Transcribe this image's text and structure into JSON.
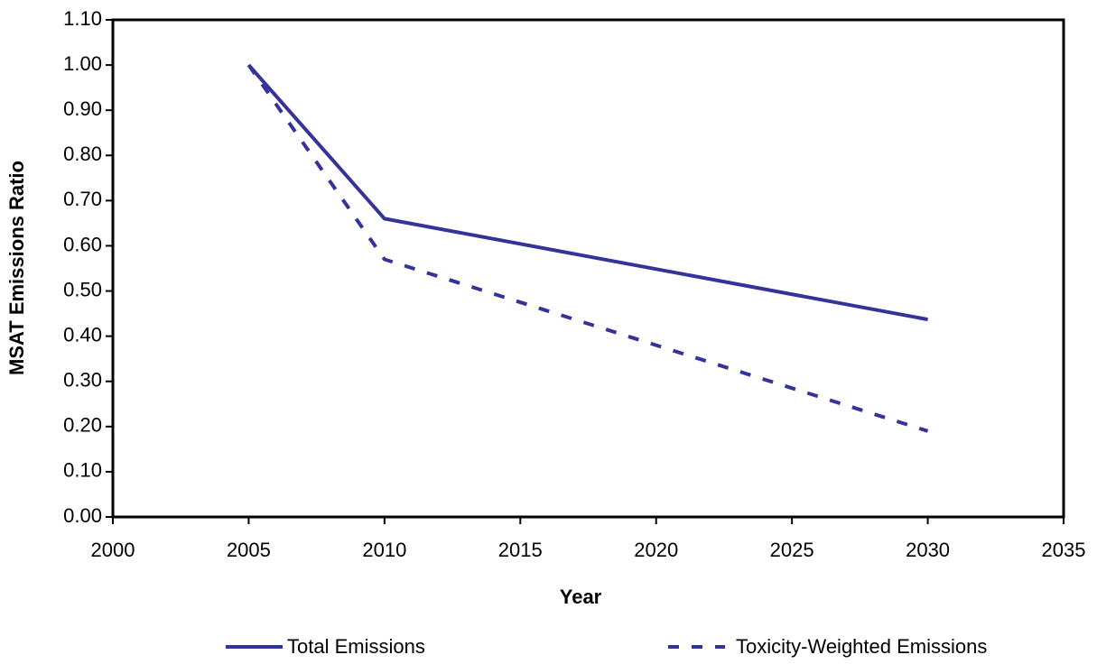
{
  "chart_data": {
    "type": "line",
    "x_label": "Year",
    "y_label": "MSAT Emissions Ratio",
    "x": [
      2005,
      2010,
      2030
    ],
    "series": [
      {
        "name": "Total Emissions",
        "color": "#333399",
        "dash": "solid",
        "values": [
          1.0,
          0.66,
          0.437
        ]
      },
      {
        "name": "Toxicity-Weighted Emissions",
        "color": "#333399",
        "dash": "dashed",
        "values": [
          1.0,
          0.57,
          0.19
        ]
      }
    ],
    "xlim": [
      2000,
      2035
    ],
    "xticks": [
      2000,
      2005,
      2010,
      2015,
      2020,
      2025,
      2030,
      2035
    ],
    "ylim": [
      0,
      1.1
    ],
    "yticks": [
      {
        "value": 0,
        "label": "0.00"
      },
      {
        "value": 0.1,
        "label": "0.10"
      },
      {
        "value": 0.2,
        "label": "0.20"
      },
      {
        "value": 0.3,
        "label": "0.30"
      },
      {
        "value": 0.4,
        "label": "0.40"
      },
      {
        "value": 0.5,
        "label": "0.50"
      },
      {
        "value": 0.6,
        "label": "0.60"
      },
      {
        "value": 0.7,
        "label": "0.70"
      },
      {
        "value": 0.8,
        "label": "0.80"
      },
      {
        "value": 0.9,
        "label": "0.90"
      },
      {
        "value": 1.0,
        "label": "1.00"
      },
      {
        "value": 1.1,
        "label": "1.10"
      }
    ],
    "grid": false,
    "legend": "bottom"
  }
}
